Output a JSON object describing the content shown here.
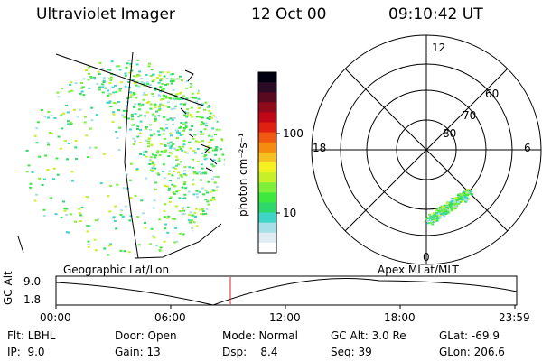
{
  "header": {
    "instrument": "Ultraviolet Imager",
    "date": "12 Oct 00",
    "time": "09:10:42 UT"
  },
  "colorbar": {
    "label": "photon cm⁻²s⁻¹",
    "tick_100": "100",
    "tick_10": "10",
    "colors": [
      "#ffffff",
      "#e0ecf4",
      "#a6dfe8",
      "#3fd6c8",
      "#2fd86a",
      "#3fe83f",
      "#7ef03a",
      "#c8f028",
      "#f5f020",
      "#f5c020",
      "#f58c10",
      "#f05a10",
      "#e02010",
      "#c00818",
      "#900a1c",
      "#5a0a20",
      "#2a0a24",
      "#000010"
    ]
  },
  "left_panel": {
    "label": "Geographic Lat/Lon"
  },
  "right_panel": {
    "label": "Apex MLat/MLT",
    "mlt_12": "12",
    "mlt_18": "18",
    "mlt_6": "6",
    "mlt_0": "0",
    "lat_60": "60",
    "lat_70": "70",
    "lat_80": "80"
  },
  "timeline": {
    "ylabel": "GC Alt",
    "y_top": "9.0",
    "y_bottom": "1.8",
    "ticks": [
      "00:00",
      "06:00",
      "12:00",
      "18:00",
      "23:59"
    ]
  },
  "info": {
    "filter": "Flt: LBHL",
    "door": "Door: Open",
    "mode": "Mode: Normal",
    "gc_alt": "GC Alt: 3.0 Re",
    "glat": "GLat: -69.9",
    "ip": "IP:  9.0",
    "gain": "Gain: 13",
    "dsp": "Dsp:    8.4",
    "seq": "Seq: 39",
    "glon": "GLon: 206.6"
  }
}
